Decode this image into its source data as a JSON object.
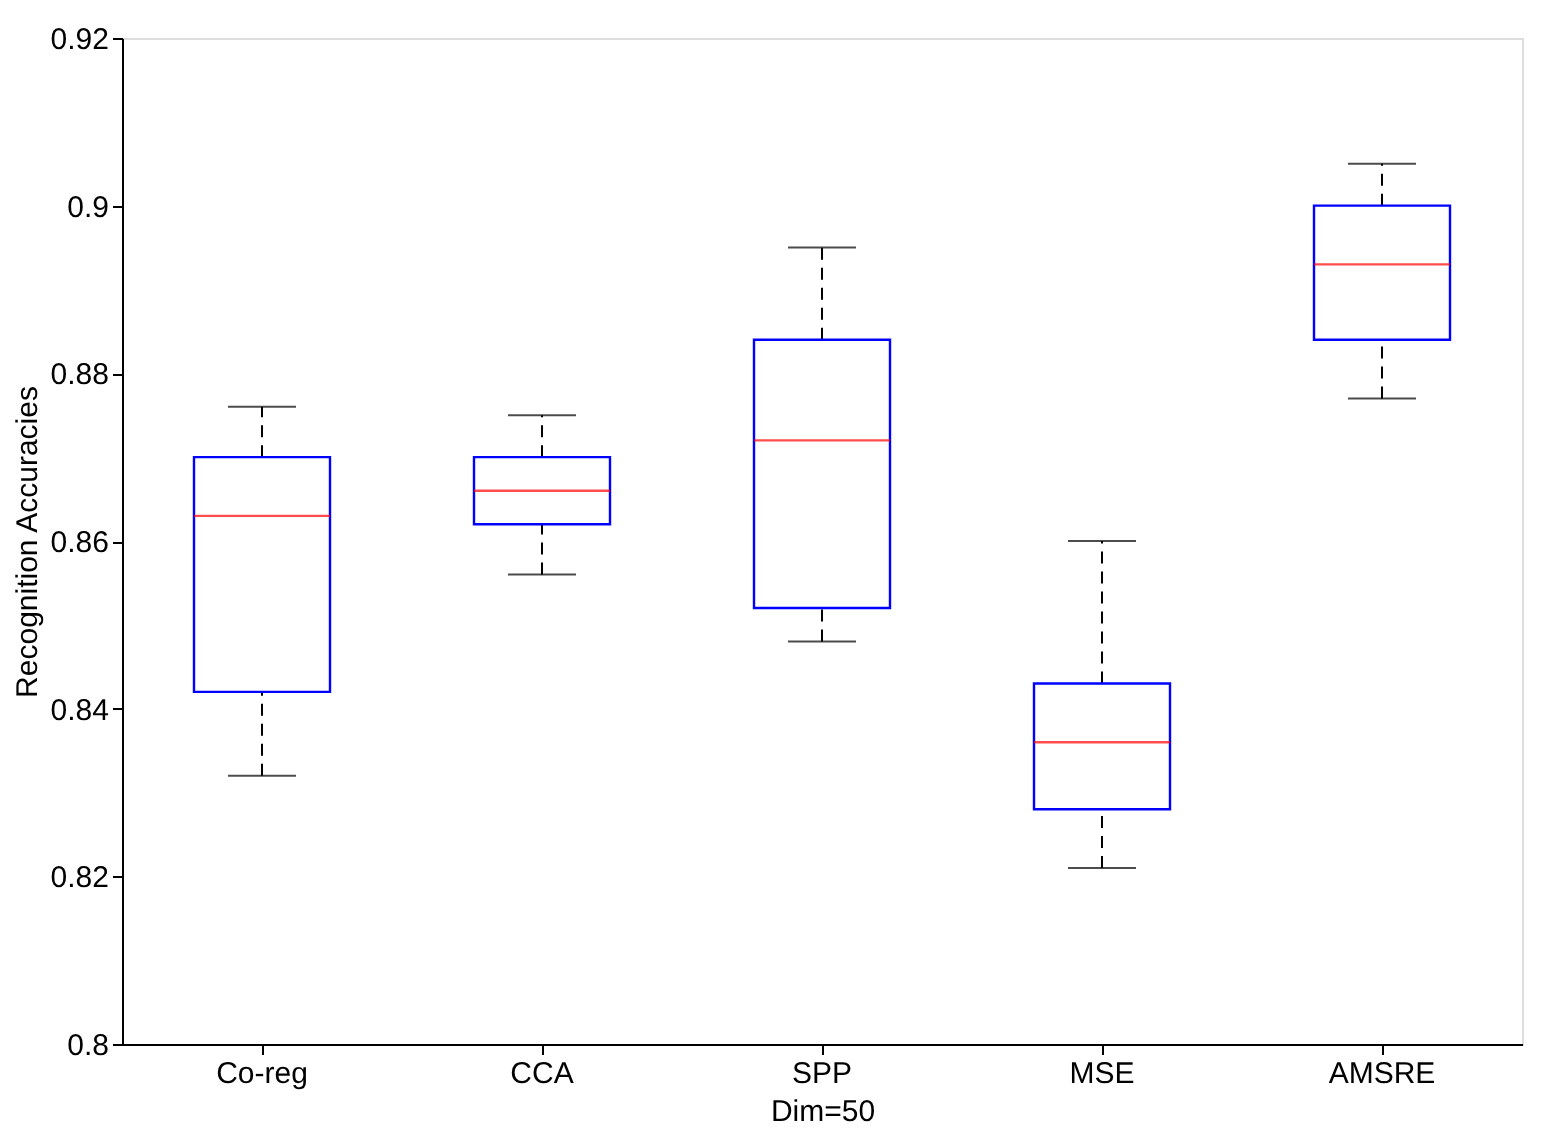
{
  "chart_data": {
    "type": "box",
    "xlabel": "Dim=50",
    "ylabel": "Recognition Accuracies",
    "categories": [
      "Co-reg",
      "CCA",
      "SPP",
      "MSE",
      "AMSRE"
    ],
    "boxes": [
      {
        "low": 0.832,
        "q1": 0.842,
        "median": 0.863,
        "q3": 0.87,
        "high": 0.876
      },
      {
        "low": 0.856,
        "q1": 0.862,
        "median": 0.866,
        "q3": 0.87,
        "high": 0.875
      },
      {
        "low": 0.848,
        "q1": 0.852,
        "median": 0.872,
        "q3": 0.884,
        "high": 0.895
      },
      {
        "low": 0.821,
        "q1": 0.828,
        "median": 0.836,
        "q3": 0.843,
        "high": 0.86
      },
      {
        "low": 0.877,
        "q1": 0.884,
        "median": 0.893,
        "q3": 0.9,
        "high": 0.905
      }
    ],
    "ylim": [
      0.8,
      0.92
    ],
    "yticks": [
      0.8,
      0.82,
      0.84,
      0.86,
      0.88,
      0.9,
      0.92
    ],
    "grid": false,
    "line_style": "dashed"
  }
}
